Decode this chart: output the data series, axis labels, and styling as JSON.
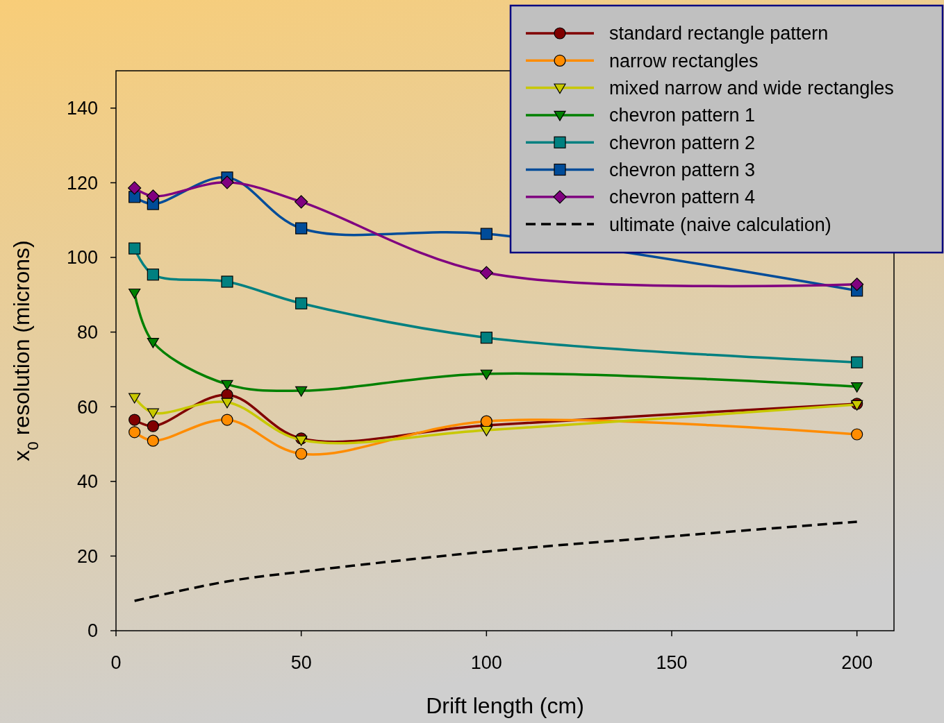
{
  "chart_data": {
    "type": "line",
    "xlabel": "Drift length (cm)",
    "ylabel": "x$_{0}$ resolution (microns)",
    "xlim": [
      0,
      210
    ],
    "ylim": [
      0,
      150
    ],
    "xticks": [
      0,
      50,
      100,
      150,
      200
    ],
    "yticks": [
      0,
      20,
      40,
      60,
      80,
      100,
      120,
      140
    ],
    "grid": false,
    "legend": "top right",
    "x": [
      5,
      10,
      30,
      50,
      100,
      200
    ],
    "series": [
      {
        "name": "standard rectangle pattern",
        "color": "#800000",
        "marker": "circle",
        "values": [
          56.5,
          54.8,
          63.2,
          51.5,
          55,
          60.8
        ]
      },
      {
        "name": "narrow rectangles",
        "color": "#ff8c00",
        "marker": "circle",
        "values": [
          53.2,
          50.9,
          56.5,
          47.4,
          56.1,
          52.6
        ]
      },
      {
        "name": "mixed narrow and wide rectangles",
        "color": "#c8c800",
        "marker": "triangle",
        "values": [
          62.5,
          58.4,
          61.2,
          51.1,
          53.7,
          60.6
        ]
      },
      {
        "name": "chevron pattern 1",
        "color": "#008000",
        "marker": "triangle",
        "values": [
          90.5,
          77.3,
          66,
          64.3,
          68.8,
          65.4
        ]
      },
      {
        "name": "chevron pattern 2",
        "color": "#008080",
        "marker": "square",
        "values": [
          102.4,
          95.4,
          93.5,
          87.7,
          78.5,
          71.9
        ]
      },
      {
        "name": "chevron pattern 3",
        "color": "#004c99",
        "marker": "square",
        "values": [
          116.2,
          114.3,
          121.4,
          107.8,
          106.3,
          91.1
        ]
      },
      {
        "name": "chevron pattern 4",
        "color": "#800080",
        "marker": "diamond",
        "values": [
          118.6,
          116.4,
          120.1,
          114.9,
          95.9,
          92.8
        ]
      },
      {
        "name": "ultimate (naive calculation)",
        "color": "#000000",
        "marker": "none",
        "line_style": "dashed",
        "x": [
          5,
          30,
          50,
          100,
          150,
          200
        ],
        "values": [
          8,
          13.2,
          15.8,
          21.2,
          25.3,
          29.2
        ]
      }
    ]
  }
}
